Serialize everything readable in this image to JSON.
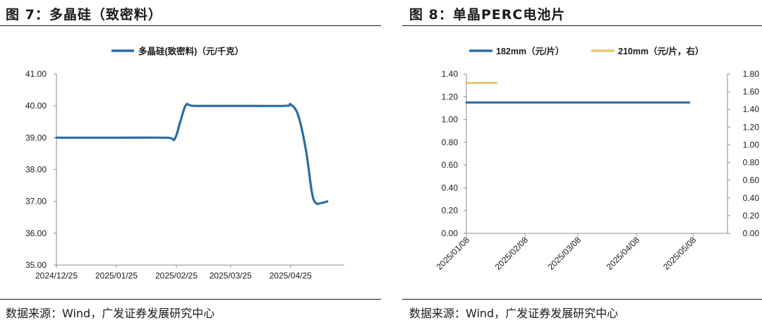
{
  "figures": [
    {
      "title": "图 7：多晶硅（致密料）",
      "source": "数据来源：Wind，广发证券发展研究中心"
    },
    {
      "title": "图 8：单晶PERC电池片",
      "source": "数据来源：Wind，广发证券发展研究中心"
    }
  ],
  "chart_data": [
    {
      "type": "line",
      "title": "",
      "xlabel": "",
      "ylabel": "",
      "x_tick_labels": [
        "2024/12/25",
        "2025/01/25",
        "2025/02/25",
        "2025/03/25",
        "2025/04/25"
      ],
      "y_tick_labels": [
        "35.00",
        "36.00",
        "37.00",
        "38.00",
        "39.00",
        "40.00",
        "41.00"
      ],
      "ylim": [
        35,
        41
      ],
      "grid": false,
      "legend": "top",
      "series": [
        {
          "name": "多晶硅(致密料)（元/千克）",
          "color": "#2b6ca3",
          "points": [
            [
              "2024-12-25",
              39.0
            ],
            [
              "2025-01-25",
              39.0
            ],
            [
              "2025-02-20",
              39.0
            ],
            [
              "2025-02-24",
              38.95
            ],
            [
              "2025-02-27",
              39.5
            ],
            [
              "2025-03-02",
              40.03
            ],
            [
              "2025-03-06",
              40.0
            ],
            [
              "2025-03-25",
              40.0
            ],
            [
              "2025-04-22",
              40.0
            ],
            [
              "2025-04-25",
              40.05
            ],
            [
              "2025-04-29",
              39.7
            ],
            [
              "2025-05-03",
              38.6
            ],
            [
              "2025-05-06",
              37.3
            ],
            [
              "2025-05-08",
              36.95
            ],
            [
              "2025-05-11",
              36.95
            ],
            [
              "2025-05-14",
              37.0
            ]
          ]
        }
      ]
    },
    {
      "type": "line",
      "title": "",
      "xlabel": "",
      "ylabel": "",
      "x_tick_labels": [
        "2025/01/08",
        "2025/02/08",
        "2025/03/08",
        "2025/04/08",
        "2025/05/08"
      ],
      "y_tick_labels": [
        "0.00",
        "0.20",
        "0.40",
        "0.60",
        "0.80",
        "1.00",
        "1.20",
        "1.40"
      ],
      "y2_tick_labels": [
        "0.00",
        "0.20",
        "0.40",
        "0.60",
        "0.80",
        "1.00",
        "1.20",
        "1.40",
        "1.60",
        "1.80"
      ],
      "ylim": [
        0,
        1.4
      ],
      "y2lim": [
        0,
        1.8
      ],
      "grid": false,
      "legend": "top",
      "series": [
        {
          "name": "182mm（元/片）",
          "color": "#2b6ca3",
          "axis": "left",
          "points": [
            [
              "2025-01-08",
              1.15
            ],
            [
              "2025-05-06",
              1.15
            ]
          ]
        },
        {
          "name": "210mm（元/片，右）",
          "color": "#e6c86e",
          "axis": "right",
          "points": [
            [
              "2025-01-08",
              1.7
            ],
            [
              "2025-01-24",
              1.7
            ]
          ]
        }
      ]
    }
  ]
}
